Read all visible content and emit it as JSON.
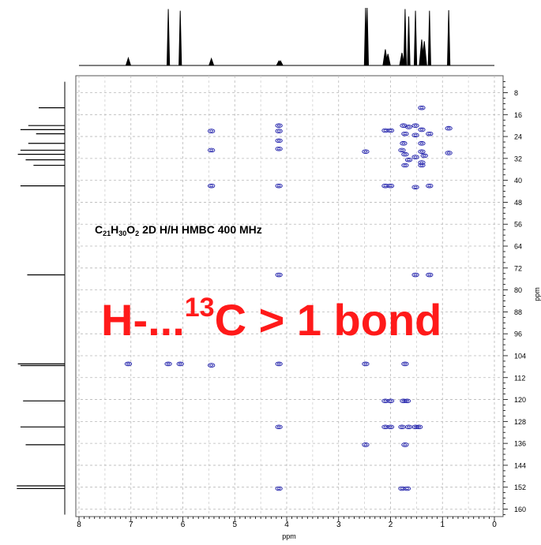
{
  "chart_data": {
    "type": "heatmap",
    "title_parts": [
      "C",
      "21",
      "H",
      "30",
      "O",
      "2",
      " 2D H/H HMBC 400 MHz"
    ],
    "annotation_parts": [
      "H-...",
      "13",
      "C > 1 bond"
    ],
    "xlabel": "ppm",
    "ylabel": "ppm",
    "xlim": [
      8,
      0
    ],
    "ylim": [
      4,
      162
    ],
    "x_ticks": [
      8,
      7,
      6,
      5,
      4,
      3,
      2,
      1,
      0
    ],
    "y_ticks": [
      8,
      16,
      24,
      32,
      40,
      48,
      56,
      64,
      72,
      80,
      88,
      96,
      104,
      112,
      120,
      128,
      136,
      144,
      152,
      160
    ],
    "grid": true,
    "contour_color": "#1a1aa8",
    "annotation_color": "#ff1a1a",
    "proton_1d": [
      {
        "ppm": 7.05,
        "h": 0.13
      },
      {
        "ppm": 6.28,
        "h": 0.98
      },
      {
        "ppm": 6.05,
        "h": 0.95
      },
      {
        "ppm": 5.45,
        "h": 0.12
      },
      {
        "ppm": 4.15,
        "h": 0.08
      },
      {
        "ppm": 4.12,
        "h": 0.08
      },
      {
        "ppm": 2.48,
        "h": 1.0
      },
      {
        "ppm": 2.45,
        "h": 1.0
      },
      {
        "ppm": 2.1,
        "h": 0.28
      },
      {
        "ppm": 2.05,
        "h": 0.2
      },
      {
        "ppm": 1.78,
        "h": 0.22
      },
      {
        "ppm": 1.72,
        "h": 0.98
      },
      {
        "ppm": 1.65,
        "h": 0.85
      },
      {
        "ppm": 1.52,
        "h": 0.95
      },
      {
        "ppm": 1.4,
        "h": 0.45
      },
      {
        "ppm": 1.35,
        "h": 0.42
      },
      {
        "ppm": 1.25,
        "h": 0.95
      },
      {
        "ppm": 0.88,
        "h": 0.96
      }
    ],
    "carbon_1d": [
      {
        "ppm": 13.5,
        "h": 0.5
      },
      {
        "ppm": 20.0,
        "h": 0.7
      },
      {
        "ppm": 21.5,
        "h": 0.85
      },
      {
        "ppm": 23.0,
        "h": 0.55
      },
      {
        "ppm": 26.5,
        "h": 0.7
      },
      {
        "ppm": 29.0,
        "h": 0.85
      },
      {
        "ppm": 30.5,
        "h": 0.9
      },
      {
        "ppm": 32.5,
        "h": 0.75
      },
      {
        "ppm": 34.5,
        "h": 0.6
      },
      {
        "ppm": 42.0,
        "h": 0.85
      },
      {
        "ppm": 74.5,
        "h": 0.72
      },
      {
        "ppm": 107.0,
        "h": 0.9
      },
      {
        "ppm": 107.6,
        "h": 0.85
      },
      {
        "ppm": 120.5,
        "h": 0.8
      },
      {
        "ppm": 130.0,
        "h": 0.85
      },
      {
        "ppm": 136.5,
        "h": 0.75
      },
      {
        "ppm": 151.5,
        "h": 0.92
      },
      {
        "ppm": 152.5,
        "h": 0.92
      }
    ],
    "cross_peaks": [
      {
        "x": 1.4,
        "y": 13.5
      },
      {
        "x": 1.75,
        "y": 20.0
      },
      {
        "x": 1.65,
        "y": 20.5
      },
      {
        "x": 1.52,
        "y": 20.0
      },
      {
        "x": 1.4,
        "y": 21.5
      },
      {
        "x": 2.1,
        "y": 21.8
      },
      {
        "x": 2.0,
        "y": 21.8
      },
      {
        "x": 0.88,
        "y": 21.0
      },
      {
        "x": 5.45,
        "y": 22.0
      },
      {
        "x": 4.15,
        "y": 20.0
      },
      {
        "x": 4.15,
        "y": 22.0
      },
      {
        "x": 1.72,
        "y": 23.0
      },
      {
        "x": 1.52,
        "y": 23.5
      },
      {
        "x": 1.25,
        "y": 23.0
      },
      {
        "x": 4.15,
        "y": 25.5
      },
      {
        "x": 1.75,
        "y": 26.5
      },
      {
        "x": 1.4,
        "y": 26.5
      },
      {
        "x": 4.15,
        "y": 28.5
      },
      {
        "x": 5.45,
        "y": 29.0
      },
      {
        "x": 2.48,
        "y": 29.5
      },
      {
        "x": 1.78,
        "y": 29.0
      },
      {
        "x": 1.72,
        "y": 30.5
      },
      {
        "x": 1.4,
        "y": 29.5
      },
      {
        "x": 1.35,
        "y": 31.0
      },
      {
        "x": 0.88,
        "y": 30.0
      },
      {
        "x": 1.65,
        "y": 32.5
      },
      {
        "x": 1.52,
        "y": 31.5
      },
      {
        "x": 1.4,
        "y": 33.5
      },
      {
        "x": 1.72,
        "y": 34.5
      },
      {
        "x": 1.4,
        "y": 34.5
      },
      {
        "x": 5.45,
        "y": 42.0
      },
      {
        "x": 4.15,
        "y": 42.0
      },
      {
        "x": 2.1,
        "y": 42.0
      },
      {
        "x": 2.0,
        "y": 42.0
      },
      {
        "x": 1.52,
        "y": 42.5
      },
      {
        "x": 1.25,
        "y": 42.0
      },
      {
        "x": 4.15,
        "y": 74.5
      },
      {
        "x": 1.52,
        "y": 74.5
      },
      {
        "x": 1.25,
        "y": 74.5
      },
      {
        "x": 7.05,
        "y": 107.0
      },
      {
        "x": 6.28,
        "y": 107.0
      },
      {
        "x": 6.05,
        "y": 107.0
      },
      {
        "x": 5.45,
        "y": 107.5
      },
      {
        "x": 4.15,
        "y": 107.0
      },
      {
        "x": 2.48,
        "y": 107.0
      },
      {
        "x": 1.72,
        "y": 107.0
      },
      {
        "x": 2.1,
        "y": 120.5
      },
      {
        "x": 2.0,
        "y": 120.5
      },
      {
        "x": 1.75,
        "y": 120.5
      },
      {
        "x": 1.68,
        "y": 120.5
      },
      {
        "x": 4.15,
        "y": 130.0
      },
      {
        "x": 2.1,
        "y": 130.0
      },
      {
        "x": 2.0,
        "y": 130.0
      },
      {
        "x": 1.78,
        "y": 130.0
      },
      {
        "x": 1.65,
        "y": 130.0
      },
      {
        "x": 1.52,
        "y": 130.0
      },
      {
        "x": 1.45,
        "y": 130.0
      },
      {
        "x": 2.48,
        "y": 136.5
      },
      {
        "x": 1.72,
        "y": 136.5
      },
      {
        "x": 4.15,
        "y": 152.5
      },
      {
        "x": 1.78,
        "y": 152.5
      },
      {
        "x": 1.68,
        "y": 152.5
      }
    ]
  }
}
